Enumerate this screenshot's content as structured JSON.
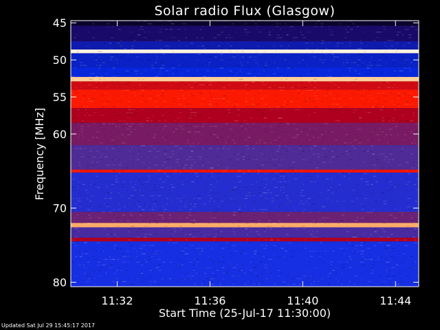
{
  "chart_data": {
    "type": "heatmap",
    "title": "Solar radio Flux (Glasgow)",
    "xlabel": "Start Time (25-Jul-17 11:30:00)",
    "ylabel": "Frequency [MHz]",
    "x_tick_labels": [
      "11:32",
      "11:36",
      "11:40",
      "11:44"
    ],
    "x_ticks_minutes": [
      2,
      6,
      10,
      14
    ],
    "xlim_minutes": [
      0,
      15
    ],
    "y_tick_labels": [
      "45",
      "50",
      "55",
      "60",
      "70",
      "80"
    ],
    "y_ticks": [
      45,
      50,
      55,
      60,
      70,
      80
    ],
    "ylim": [
      44.7,
      80.6
    ],
    "y_inverted": true,
    "colormap": [
      "#000000",
      "#1a0a6e",
      "#0030ff",
      "#5a2a8a",
      "#b00020",
      "#ff1a00",
      "#ff8a3a",
      "#ffe0b0",
      "#ffffff"
    ],
    "bands": [
      {
        "from": 44.7,
        "to": 45.4,
        "level": 0.05
      },
      {
        "from": 45.4,
        "to": 47.5,
        "level": 0.12
      },
      {
        "from": 47.5,
        "to": 48.6,
        "level": 0.18
      },
      {
        "from": 48.6,
        "to": 49.1,
        "level": 0.95
      },
      {
        "from": 49.1,
        "to": 51.0,
        "level": 0.2
      },
      {
        "from": 51.0,
        "to": 52.3,
        "level": 0.22
      },
      {
        "from": 52.3,
        "to": 52.9,
        "level": 0.85
      },
      {
        "from": 52.9,
        "to": 54.0,
        "level": 0.55
      },
      {
        "from": 54.0,
        "to": 56.5,
        "level": 0.62
      },
      {
        "from": 56.5,
        "to": 58.5,
        "level": 0.5
      },
      {
        "from": 58.5,
        "to": 61.5,
        "level": 0.42
      },
      {
        "from": 61.5,
        "to": 64.8,
        "level": 0.36
      },
      {
        "from": 64.8,
        "to": 65.2,
        "level": 0.6
      },
      {
        "from": 65.2,
        "to": 70.5,
        "level": 0.3
      },
      {
        "from": 70.5,
        "to": 72.0,
        "level": 0.4
      },
      {
        "from": 72.0,
        "to": 72.6,
        "level": 0.8
      },
      {
        "from": 72.6,
        "to": 74.0,
        "level": 0.35
      },
      {
        "from": 74.0,
        "to": 74.5,
        "level": 0.5
      },
      {
        "from": 74.5,
        "to": 80.6,
        "level": 0.28
      }
    ]
  },
  "footer": {
    "updated": "Updated Sat Jul 29 15:45:17 2017"
  }
}
